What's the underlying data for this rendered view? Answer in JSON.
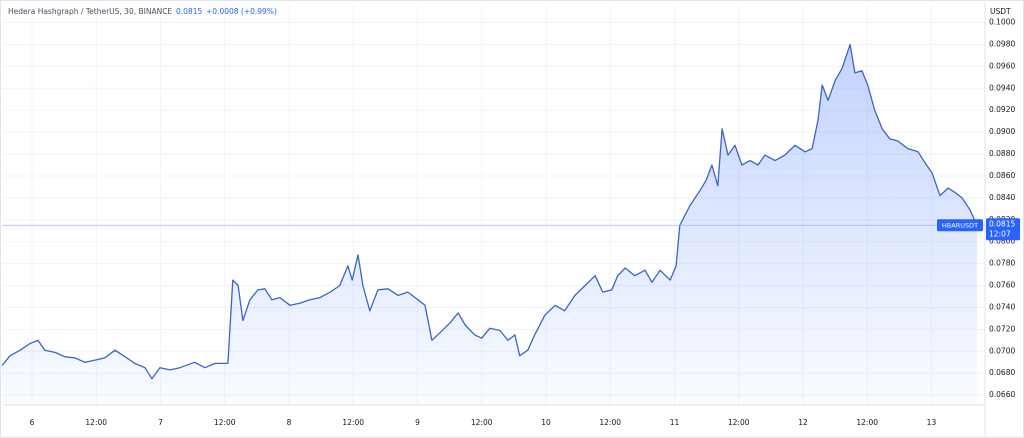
{
  "chart_data": {
    "type": "line",
    "title": "Hedera Hashgraph / TetherUS, 30, BINANCE",
    "change": "+0.0008 (+0.99%)",
    "y_label": "USDT",
    "symbol_label": "HBARUSDT",
    "last_value": 0.0815,
    "last_time": "12:07",
    "color": "#3a64c8",
    "area": true,
    "grid": true,
    "xlim": [
      -5.6,
      178
    ],
    "ylim": [
      0.0651,
      0.1016
    ],
    "xticks": [
      {
        "value": 0,
        "label": "6"
      },
      {
        "value": 12,
        "label": "12:00"
      },
      {
        "value": 24,
        "label": "7"
      },
      {
        "value": 36,
        "label": "12:00"
      },
      {
        "value": 48,
        "label": "8"
      },
      {
        "value": 60,
        "label": "12:00"
      },
      {
        "value": 72,
        "label": "9"
      },
      {
        "value": 84,
        "label": "12:00"
      },
      {
        "value": 96,
        "label": "10"
      },
      {
        "value": 108,
        "label": "12:00"
      },
      {
        "value": 120,
        "label": "11"
      },
      {
        "value": 132,
        "label": "12:00"
      },
      {
        "value": 144,
        "label": "12"
      },
      {
        "value": 156,
        "label": "12:00"
      },
      {
        "value": 168,
        "label": "13"
      }
    ],
    "yticks": [
      {
        "value": 0.066,
        "label": "0.0660"
      },
      {
        "value": 0.068,
        "label": "0.0680"
      },
      {
        "value": 0.07,
        "label": "0.0700"
      },
      {
        "value": 0.072,
        "label": "0.0720"
      },
      {
        "value": 0.074,
        "label": "0.0740"
      },
      {
        "value": 0.076,
        "label": "0.0760"
      },
      {
        "value": 0.078,
        "label": "0.0780"
      },
      {
        "value": 0.08,
        "label": "0.0800"
      },
      {
        "value": 0.082,
        "label": "0.0820"
      },
      {
        "value": 0.084,
        "label": "0.0840"
      },
      {
        "value": 0.086,
        "label": "0.0860"
      },
      {
        "value": 0.088,
        "label": "0.0880"
      },
      {
        "value": 0.09,
        "label": "0.0900"
      },
      {
        "value": 0.092,
        "label": "0.0920"
      },
      {
        "value": 0.094,
        "label": "0.0940"
      },
      {
        "value": 0.096,
        "label": "0.0960"
      },
      {
        "value": 0.098,
        "label": "0.0980"
      },
      {
        "value": 0.1,
        "label": "0.1000"
      }
    ],
    "x": [
      -5.6,
      -4.1,
      -2.2,
      -0.4,
      1.1,
      2.4,
      4.3,
      6.2,
      8.0,
      9.9,
      11.8,
      13.6,
      15.5,
      17.4,
      19.2,
      21.1,
      22.4,
      23.9,
      25.8,
      27.6,
      30.4,
      32.3,
      34.2,
      36.6,
      37.5,
      38.5,
      39.4,
      40.7,
      42.2,
      43.5,
      44.8,
      46.3,
      48.2,
      50.1,
      51.9,
      53.8,
      55.7,
      57.5,
      59.0,
      59.8,
      60.9,
      61.8,
      63.1,
      64.6,
      66.5,
      68.4,
      70.2,
      72.1,
      73.4,
      74.7,
      76.2,
      78.1,
      79.6,
      80.9,
      82.7,
      84.0,
      85.5,
      87.4,
      88.9,
      90.2,
      91.1,
      92.6,
      93.9,
      95.8,
      97.7,
      99.5,
      101.4,
      103.3,
      105.2,
      106.6,
      108.3,
      109.4,
      110.8,
      112.6,
      114.5,
      115.8,
      117.3,
      119.2,
      120.3,
      121.0,
      122.9,
      124.8,
      125.9,
      127.0,
      128.1,
      128.9,
      130.0,
      131.3,
      132.6,
      134.1,
      135.6,
      136.9,
      138.8,
      140.6,
      142.5,
      144.4,
      145.7,
      146.8,
      147.6,
      148.7,
      150.0,
      151.3,
      152.8,
      153.7,
      155.0,
      156.1,
      157.4,
      158.8,
      160.2,
      161.7,
      163.6,
      165.5,
      166.8,
      168.1,
      169.6,
      171.1,
      172.4,
      173.7,
      175.2,
      176.5
    ],
    "values": [
      0.0687,
      0.0696,
      0.0701,
      0.0707,
      0.071,
      0.0701,
      0.0699,
      0.0695,
      0.0694,
      0.069,
      0.0692,
      0.0694,
      0.0701,
      0.0695,
      0.0689,
      0.0685,
      0.0675,
      0.0685,
      0.0683,
      0.0685,
      0.069,
      0.0685,
      0.0689,
      0.0689,
      0.0765,
      0.076,
      0.0728,
      0.0747,
      0.0756,
      0.0757,
      0.0747,
      0.0749,
      0.0742,
      0.0744,
      0.0747,
      0.0749,
      0.0754,
      0.076,
      0.0778,
      0.0765,
      0.0788,
      0.076,
      0.0737,
      0.0756,
      0.0757,
      0.0751,
      0.0754,
      0.0747,
      0.0742,
      0.071,
      0.0717,
      0.0726,
      0.0735,
      0.0724,
      0.0715,
      0.0712,
      0.0721,
      0.0719,
      0.071,
      0.0715,
      0.0696,
      0.0701,
      0.0715,
      0.0733,
      0.0742,
      0.0737,
      0.0751,
      0.076,
      0.0769,
      0.0754,
      0.0756,
      0.0769,
      0.0776,
      0.0769,
      0.0774,
      0.0763,
      0.0774,
      0.0765,
      0.0778,
      0.0815,
      0.0833,
      0.0847,
      0.0856,
      0.087,
      0.0851,
      0.0903,
      0.0879,
      0.0888,
      0.087,
      0.0874,
      0.087,
      0.0879,
      0.0874,
      0.0879,
      0.0888,
      0.0882,
      0.0885,
      0.0911,
      0.0943,
      0.0929,
      0.0947,
      0.0958,
      0.098,
      0.0954,
      0.0956,
      0.0943,
      0.092,
      0.0903,
      0.0894,
      0.0892,
      0.0885,
      0.0882,
      0.0872,
      0.0863,
      0.0842,
      0.0849,
      0.0845,
      0.084,
      0.0829,
      0.0815
    ]
  }
}
